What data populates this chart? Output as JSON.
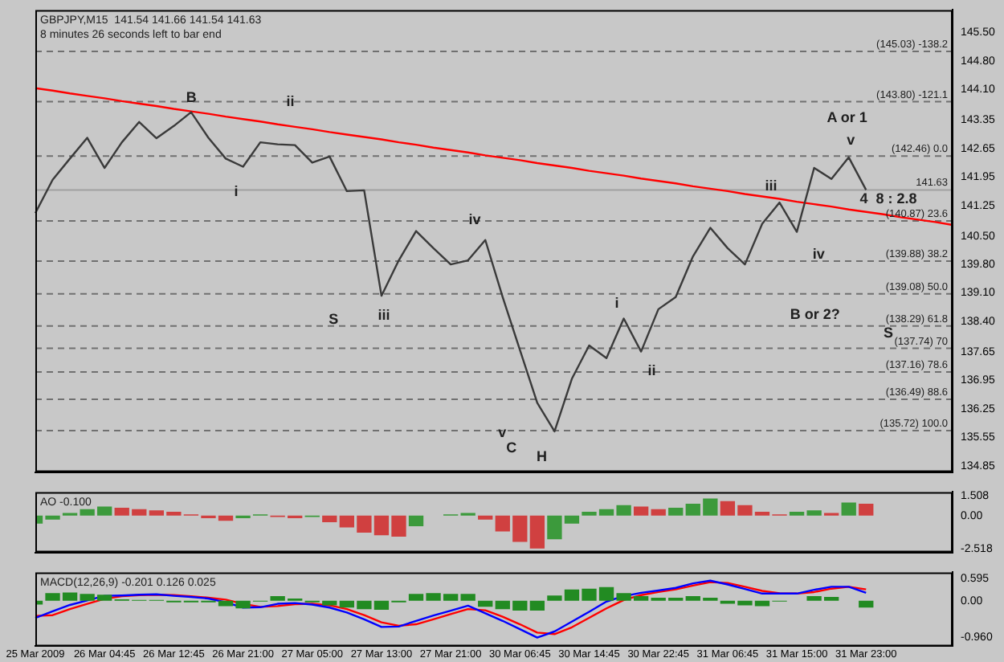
{
  "chart_data": [
    {
      "type": "line",
      "title": "GBPJPY,M15  141.54 141.66 141.54 141.63",
      "subtitle": "8 minutes 26 seconds left to bar end",
      "categories": [
        null,
        null,
        null,
        null,
        null,
        null,
        null,
        null,
        null,
        null,
        null,
        null,
        null,
        null,
        null,
        null,
        null,
        null,
        null,
        null,
        null,
        null,
        null,
        null,
        null,
        null,
        null,
        null,
        null,
        null,
        null,
        null,
        null,
        null,
        null,
        null,
        null,
        null,
        null,
        null,
        null,
        null,
        null,
        null,
        null,
        null,
        null,
        null,
        null,
        null,
        null,
        null,
        null,
        null
      ],
      "series": [
        {
          "type": "line",
          "color": "#3a3a3a",
          "values": [
            141.06,
            141.88,
            142.4,
            142.91,
            142.17,
            142.8,
            143.3,
            142.9,
            143.2,
            143.54,
            142.91,
            142.4,
            142.2,
            142.8,
            142.75,
            142.73,
            142.3,
            142.45,
            141.6,
            141.62,
            139.03,
            139.9,
            140.62,
            140.2,
            139.8,
            139.9,
            140.4,
            139.0,
            137.7,
            136.4,
            135.7,
            136.99,
            137.81,
            137.5,
            138.47,
            137.66,
            138.7,
            139.0,
            140.0,
            140.7,
            140.2,
            139.8,
            140.8,
            141.32,
            140.6,
            142.17,
            141.9,
            142.43,
            141.63,
            null,
            null,
            null,
            null,
            null
          ]
        },
        {
          "type": "line",
          "color": "#ff0000",
          "values": [
            144.13,
            144.07,
            144.0,
            143.94,
            143.88,
            143.81,
            143.75,
            143.69,
            143.62,
            143.56,
            143.5,
            143.43,
            143.37,
            143.31,
            143.24,
            143.18,
            143.12,
            143.05,
            142.99,
            142.93,
            142.87,
            142.8,
            142.74,
            142.67,
            142.61,
            142.55,
            142.48,
            142.42,
            142.36,
            142.29,
            142.23,
            142.17,
            142.1,
            142.04,
            141.98,
            141.91,
            141.85,
            141.79,
            141.72,
            141.66,
            141.6,
            141.53,
            141.47,
            141.41,
            141.34,
            141.28,
            141.22,
            141.15,
            141.09,
            141.03,
            140.96,
            140.9,
            140.84,
            140.77
          ]
        }
      ],
      "ylim": [
        134.7,
        146.05
      ],
      "yticks": [
        {
          "value": 145.5,
          "label": "145.50"
        },
        {
          "value": 144.8,
          "label": "144.80"
        },
        {
          "value": 144.1,
          "label": "144.10"
        },
        143.35,
        142.65,
        141.95,
        141.25,
        {
          "value": 140.5,
          "label": "140.50"
        },
        {
          "value": 139.8,
          "label": "139.80"
        },
        {
          "value": 139.1,
          "label": "139.10"
        },
        {
          "value": 138.4,
          "label": "138.40"
        },
        137.65,
        136.95,
        136.25,
        135.55,
        134.85
      ],
      "tick_labels": "y",
      "legend": false,
      "marker": "none",
      "ref_lines": [
        {
          "axis": "y",
          "value": 145.03,
          "label": "(145.03) -138.2",
          "color": "#707070",
          "line_style": "dashed"
        },
        {
          "axis": "y",
          "value": 143.8,
          "label": "(143.80) -121.1",
          "color": "#707070",
          "line_style": "dashed"
        },
        {
          "axis": "y",
          "value": 142.46,
          "label": "(142.46) 0.0",
          "color": "#707070",
          "line_style": "dashed"
        },
        {
          "axis": "y",
          "value": 140.87,
          "label": "(140.87) 23.6",
          "color": "#707070",
          "line_style": "dashed"
        },
        {
          "axis": "y",
          "value": 139.88,
          "label": "(139.88) 38.2",
          "color": "#707070",
          "line_style": "dashed"
        },
        {
          "axis": "y",
          "value": 139.08,
          "label": "(139.08) 50.0",
          "color": "#707070",
          "line_style": "dashed"
        },
        {
          "axis": "y",
          "value": 138.29,
          "label": "(138.29) 61.8",
          "color": "#707070",
          "line_style": "dashed"
        },
        {
          "axis": "y",
          "value": 137.74,
          "label": "(137.74) 70",
          "color": "#707070",
          "line_style": "dashed"
        },
        {
          "axis": "y",
          "value": 137.16,
          "label": "(137.16) 78.6",
          "color": "#707070",
          "line_style": "dashed"
        },
        {
          "axis": "y",
          "value": 136.49,
          "label": "(136.49) 88.6",
          "color": "#707070",
          "line_style": "dashed"
        },
        {
          "axis": "y",
          "value": 135.72,
          "label": "(135.72) 100.0",
          "color": "#707070",
          "line_style": "dashed"
        },
        {
          "axis": "y",
          "value": 141.63,
          "label": "141.63",
          "color": "#a0a0a0",
          "line_style": "solid"
        }
      ],
      "annotations": [
        "B",
        "i",
        "ii",
        "iii",
        "iv",
        "S",
        "v",
        "C",
        "H",
        "i",
        "ii",
        "iii",
        "iv",
        "v",
        "A or 1",
        "B or 2?",
        "S",
        "4  8 : 2.8"
      ]
    },
    {
      "type": "bar",
      "title": "AO -0.100",
      "categories": [
        null,
        null,
        null,
        null,
        null,
        null,
        null,
        null,
        null,
        null,
        null,
        null,
        null,
        null,
        null,
        null,
        null,
        null,
        null,
        null,
        null,
        null,
        null,
        null,
        null,
        null,
        null,
        null,
        null,
        null,
        null,
        null,
        null,
        null,
        null,
        null,
        null,
        null,
        null,
        null,
        null,
        null,
        null,
        null,
        null,
        null,
        null,
        null,
        null,
        null,
        null,
        null,
        null,
        null
      ],
      "values": [
        -0.6,
        -0.3,
        0.2,
        0.5,
        0.7,
        0.6,
        0.5,
        0.4,
        0.3,
        0.1,
        -0.2,
        -0.4,
        -0.2,
        0.1,
        -0.1,
        -0.2,
        -0.1,
        -0.5,
        -0.9,
        -1.3,
        -1.5,
        -1.6,
        -0.8,
        0.0,
        0.1,
        0.2,
        -0.3,
        -1.2,
        -2.0,
        -2.5,
        -1.8,
        -0.6,
        0.3,
        0.5,
        0.8,
        0.7,
        0.5,
        0.6,
        0.9,
        1.3,
        1.1,
        0.8,
        0.3,
        0.1,
        0.3,
        0.4,
        0.2,
        1.0,
        0.9,
        null,
        null,
        null,
        null,
        null
      ],
      "colors": [
        "#3c9a3c",
        "#3c9a3c",
        "#3c9a3c",
        "#3c9a3c",
        "#3c9a3c",
        "#d04040",
        "#d04040",
        "#d04040",
        "#d04040",
        "#d04040",
        "#d04040",
        "#d04040",
        "#3c9a3c",
        "#3c9a3c",
        "#d04040",
        "#d04040",
        "#3c9a3c",
        "#d04040",
        "#d04040",
        "#d04040",
        "#d04040",
        "#d04040",
        "#3c9a3c",
        "#3c9a3c",
        "#3c9a3c",
        "#3c9a3c",
        "#d04040",
        "#d04040",
        "#d04040",
        "#d04040",
        "#3c9a3c",
        "#3c9a3c",
        "#3c9a3c",
        "#3c9a3c",
        "#3c9a3c",
        "#d04040",
        "#d04040",
        "#3c9a3c",
        "#3c9a3c",
        "#3c9a3c",
        "#d04040",
        "#d04040",
        "#d04040",
        "#d04040",
        "#3c9a3c",
        "#3c9a3c",
        "#d04040",
        "#3c9a3c",
        "#d04040",
        "#3c9a3c",
        "#3c9a3c",
        "#3c9a3c",
        "#3c9a3c",
        "#3c9a3c"
      ],
      "ylim": [
        -2.8,
        1.8
      ],
      "yticks": [
        1.508,
        {
          "value": 0,
          "label": "0.00"
        },
        -2.518
      ],
      "tick_labels": "y",
      "legend": false
    },
    {
      "type": "line",
      "title": "MACD(12,26,9) -0.201 0.126 0.025",
      "categories": [
        "25 Mar 2009",
        null,
        null,
        null,
        "26 Mar 04:45",
        null,
        null,
        null,
        "26 Mar 12:45",
        null,
        null,
        null,
        "26 Mar 21:00",
        null,
        null,
        null,
        "27 Mar 05:00",
        null,
        null,
        null,
        "27 Mar 13:00",
        null,
        null,
        null,
        "27 Mar 21:00",
        null,
        null,
        null,
        "30 Mar 06:45",
        null,
        null,
        null,
        "30 Mar 14:45",
        null,
        null,
        null,
        "30 Mar 22:45",
        null,
        null,
        null,
        "31 Mar 06:45",
        null,
        null,
        null,
        "31 Mar 15:00",
        null,
        null,
        null,
        "31 Mar 23:00",
        null,
        null,
        null,
        null,
        null
      ],
      "series": [
        {
          "type": "bar",
          "color": "#228b22",
          "values": [
            -0.1,
            0.2,
            0.22,
            0.18,
            0.16,
            0.04,
            0.02,
            0.02,
            -0.04,
            -0.04,
            -0.04,
            -0.14,
            -0.2,
            -0.02,
            0.12,
            0.06,
            -0.04,
            -0.12,
            -0.18,
            -0.22,
            -0.24,
            -0.04,
            0.18,
            0.2,
            0.18,
            0.18,
            -0.16,
            -0.22,
            -0.26,
            -0.26,
            0.14,
            0.3,
            0.32,
            0.36,
            0.2,
            0.12,
            0.08,
            0.08,
            0.12,
            0.08,
            -0.08,
            -0.12,
            -0.14,
            -0.02,
            0.0,
            0.12,
            0.1,
            0.0,
            -0.18,
            null,
            null,
            null,
            null,
            null
          ]
        },
        {
          "type": "line",
          "color": "#0000ff",
          "values": [
            -0.45,
            -0.28,
            -0.11,
            0.01,
            0.13,
            0.14,
            0.16,
            0.17,
            0.13,
            0.1,
            0.06,
            -0.04,
            -0.18,
            -0.17,
            -0.08,
            -0.06,
            -0.1,
            -0.18,
            -0.31,
            -0.49,
            -0.69,
            -0.68,
            -0.53,
            -0.39,
            -0.26,
            -0.13,
            -0.33,
            -0.53,
            -0.75,
            -0.97,
            -0.81,
            -0.55,
            -0.29,
            -0.02,
            0.12,
            0.21,
            0.27,
            0.34,
            0.46,
            0.53,
            0.43,
            0.31,
            0.19,
            0.19,
            0.19,
            0.29,
            0.37,
            0.37,
            0.21,
            null,
            null,
            null,
            null,
            null
          ]
        },
        {
          "type": "line",
          "color": "#ff0000",
          "values": [
            -0.4,
            -0.38,
            -0.22,
            -0.08,
            0.05,
            0.12,
            0.15,
            0.16,
            0.15,
            0.12,
            0.08,
            0.03,
            -0.08,
            -0.16,
            -0.14,
            -0.09,
            -0.08,
            -0.12,
            -0.22,
            -0.38,
            -0.57,
            -0.66,
            -0.62,
            -0.49,
            -0.35,
            -0.22,
            -0.25,
            -0.42,
            -0.62,
            -0.84,
            -0.88,
            -0.7,
            -0.45,
            -0.2,
            0.02,
            0.15,
            0.23,
            0.3,
            0.4,
            0.49,
            0.47,
            0.37,
            0.26,
            0.2,
            0.19,
            0.23,
            0.32,
            0.37,
            0.3,
            null,
            null,
            null,
            null,
            null
          ]
        }
      ],
      "ylim": [
        -1.2,
        0.75
      ],
      "yticks": [
        0.595,
        {
          "value": 0,
          "label": "0.00"
        },
        {
          "value": -0.96,
          "label": "-0.960"
        }
      ],
      "legend": false,
      "marker": "none"
    }
  ]
}
